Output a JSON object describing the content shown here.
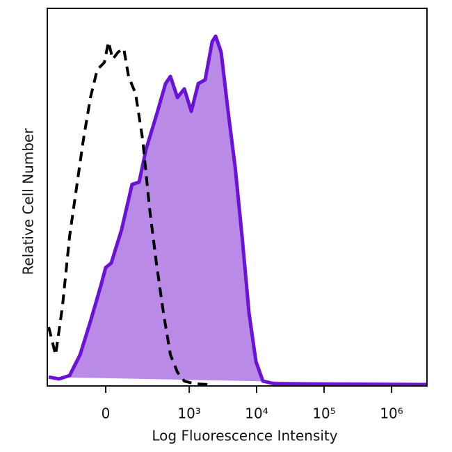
{
  "chart_data": {
    "type": "histogram-overlay",
    "x_label": "Log Fluorescence Intensity",
    "y_label": "Relative Cell Number",
    "x_scale": "biexponential",
    "xlim": [
      -398,
      3270000
    ],
    "ylim": [
      0,
      100
    ],
    "xticks": [
      0,
      {
        "value": 1000,
        "label": "10³"
      },
      {
        "value": 10000,
        "label": "10⁴"
      },
      {
        "value": 100000,
        "label": "10⁵"
      },
      {
        "value": 1000000,
        "label": "10⁶"
      }
    ],
    "series": [
      {
        "color": "#6b12d9",
        "fill_color": "#b98ae6",
        "dashed": false,
        "x": [
          -398,
          -273,
          -182,
          -115,
          -63,
          -19,
          0,
          22,
          66,
          119,
          163,
          215,
          318,
          440,
          522,
          664,
          845,
          1072,
          1361,
          1726,
          2190,
          2470,
          2980,
          3780,
          4800,
          6090,
          7710,
          9780,
          12390,
          18560,
          3270000
        ],
        "values": [
          2.0,
          1.5,
          2.4,
          7.9,
          16.8,
          26.4,
          31.1,
          32.3,
          41.2,
          53.2,
          53.8,
          62.5,
          71.7,
          80.0,
          81.9,
          76.3,
          78.6,
          72.6,
          80.0,
          81.0,
          91.1,
          92.6,
          88.4,
          72.6,
          57.9,
          39.4,
          19.0,
          6.1,
          0.9,
          0.2,
          0
        ]
      },
      {
        "color": "#000000",
        "fill_color": null,
        "dashed": true,
        "x": [
          -398,
          -310,
          -240,
          -182,
          -136,
          -97,
          -63,
          -34,
          -5.5,
          11,
          28,
          51,
          76,
          100,
          140,
          188,
          246,
          318,
          408,
          522,
          664,
          845,
          1210,
          1943
        ],
        "values": [
          15.3,
          7.9,
          20.9,
          39.4,
          52.3,
          65.2,
          76.3,
          83.7,
          85.6,
          91.1,
          86.5,
          88.4,
          89.3,
          81.9,
          77.3,
          65.2,
          46.8,
          32.0,
          19.0,
          7.9,
          3.3,
          0.9,
          0.2,
          0
        ]
      }
    ]
  }
}
